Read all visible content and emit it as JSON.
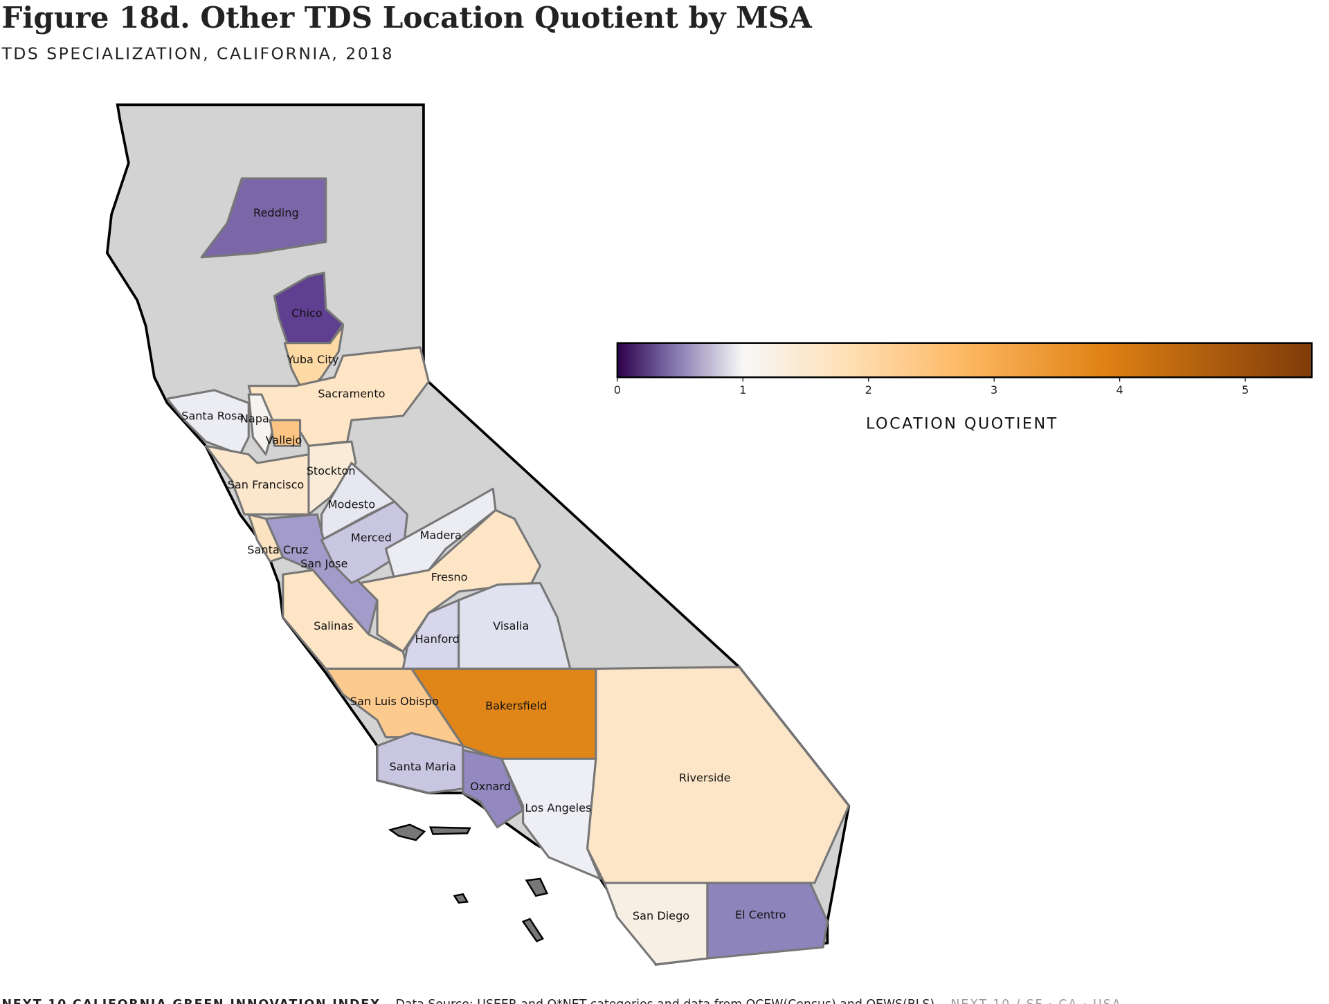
{
  "title": "Figure 18d. Other TDS Location Quotient by MSA",
  "subtitle": "TDS SPECIALIZATION, CALIFORNIA, 2018",
  "regions": [
    {
      "name": "Redding",
      "color": "#7b67a8"
    },
    {
      "name": "Chico",
      "color": "#5e3f90"
    },
    {
      "name": "Yuba City",
      "color": "#fdd9a4"
    },
    {
      "name": "Sacramento",
      "color": "#fde5c5"
    },
    {
      "name": "Santa Rosa",
      "color": "#ececf3"
    },
    {
      "name": "Napa",
      "color": "#f7f3f0"
    },
    {
      "name": "Vallejo",
      "color": "#fcc583"
    },
    {
      "name": "Stockton",
      "color": "#faebd8"
    },
    {
      "name": "San Francisco",
      "color": "#fde7cc"
    },
    {
      "name": "Modesto",
      "color": "#e6e7f0"
    },
    {
      "name": "San Jose",
      "color": "#a39bc9"
    },
    {
      "name": "Santa Cruz",
      "color": "#fbe2c0"
    },
    {
      "name": "Merced",
      "color": "#c9c6e1"
    },
    {
      "name": "Madera",
      "color": "#ececf3"
    },
    {
      "name": "Fresno",
      "color": "#fde5c5"
    },
    {
      "name": "Salinas",
      "color": "#fde5c5"
    },
    {
      "name": "Hanford",
      "color": "#d7d6ea"
    },
    {
      "name": "Visalia",
      "color": "#e1e2ef"
    },
    {
      "name": "San Luis Obispo",
      "color": "#fdca8e"
    },
    {
      "name": "Bakersfield",
      "color": "#e08518"
    },
    {
      "name": "Santa Maria",
      "color": "#c9c6e1"
    },
    {
      "name": "Oxnard",
      "color": "#9389c0"
    },
    {
      "name": "Los Angeles",
      "color": "#eeeef5"
    },
    {
      "name": "Riverside",
      "color": "#fde6c8"
    },
    {
      "name": "San Diego",
      "color": "#f7efe4"
    },
    {
      "name": "El Centro",
      "color": "#8d84bc"
    }
  ],
  "colorbar": {
    "label": "LOCATION QUOTIENT",
    "lim": [
      0,
      5.53
    ],
    "ticks": [
      0,
      1,
      2,
      3,
      4,
      5
    ],
    "colormap": [
      {
        "offset": 0,
        "color": "#2d004b"
      },
      {
        "offset": 0.08,
        "color": "#8073ac"
      },
      {
        "offset": 0.18,
        "color": "#f7f7f7"
      },
      {
        "offset": 0.33,
        "color": "#fee0b6"
      },
      {
        "offset": 0.5,
        "color": "#fdb863"
      },
      {
        "offset": 0.7,
        "color": "#e08214"
      },
      {
        "offset": 1,
        "color": "#7f3b08"
      }
    ]
  },
  "footer": {
    "brand": "NEXT 10 CALIFORNIA GREEN INNOVATION INDEX.",
    "source": "Data Source: USEER and O*NET categories and data from QCEW(Census) and OEWS(BLS).",
    "credit": "NEXT 10  /  SF · CA · USA"
  }
}
